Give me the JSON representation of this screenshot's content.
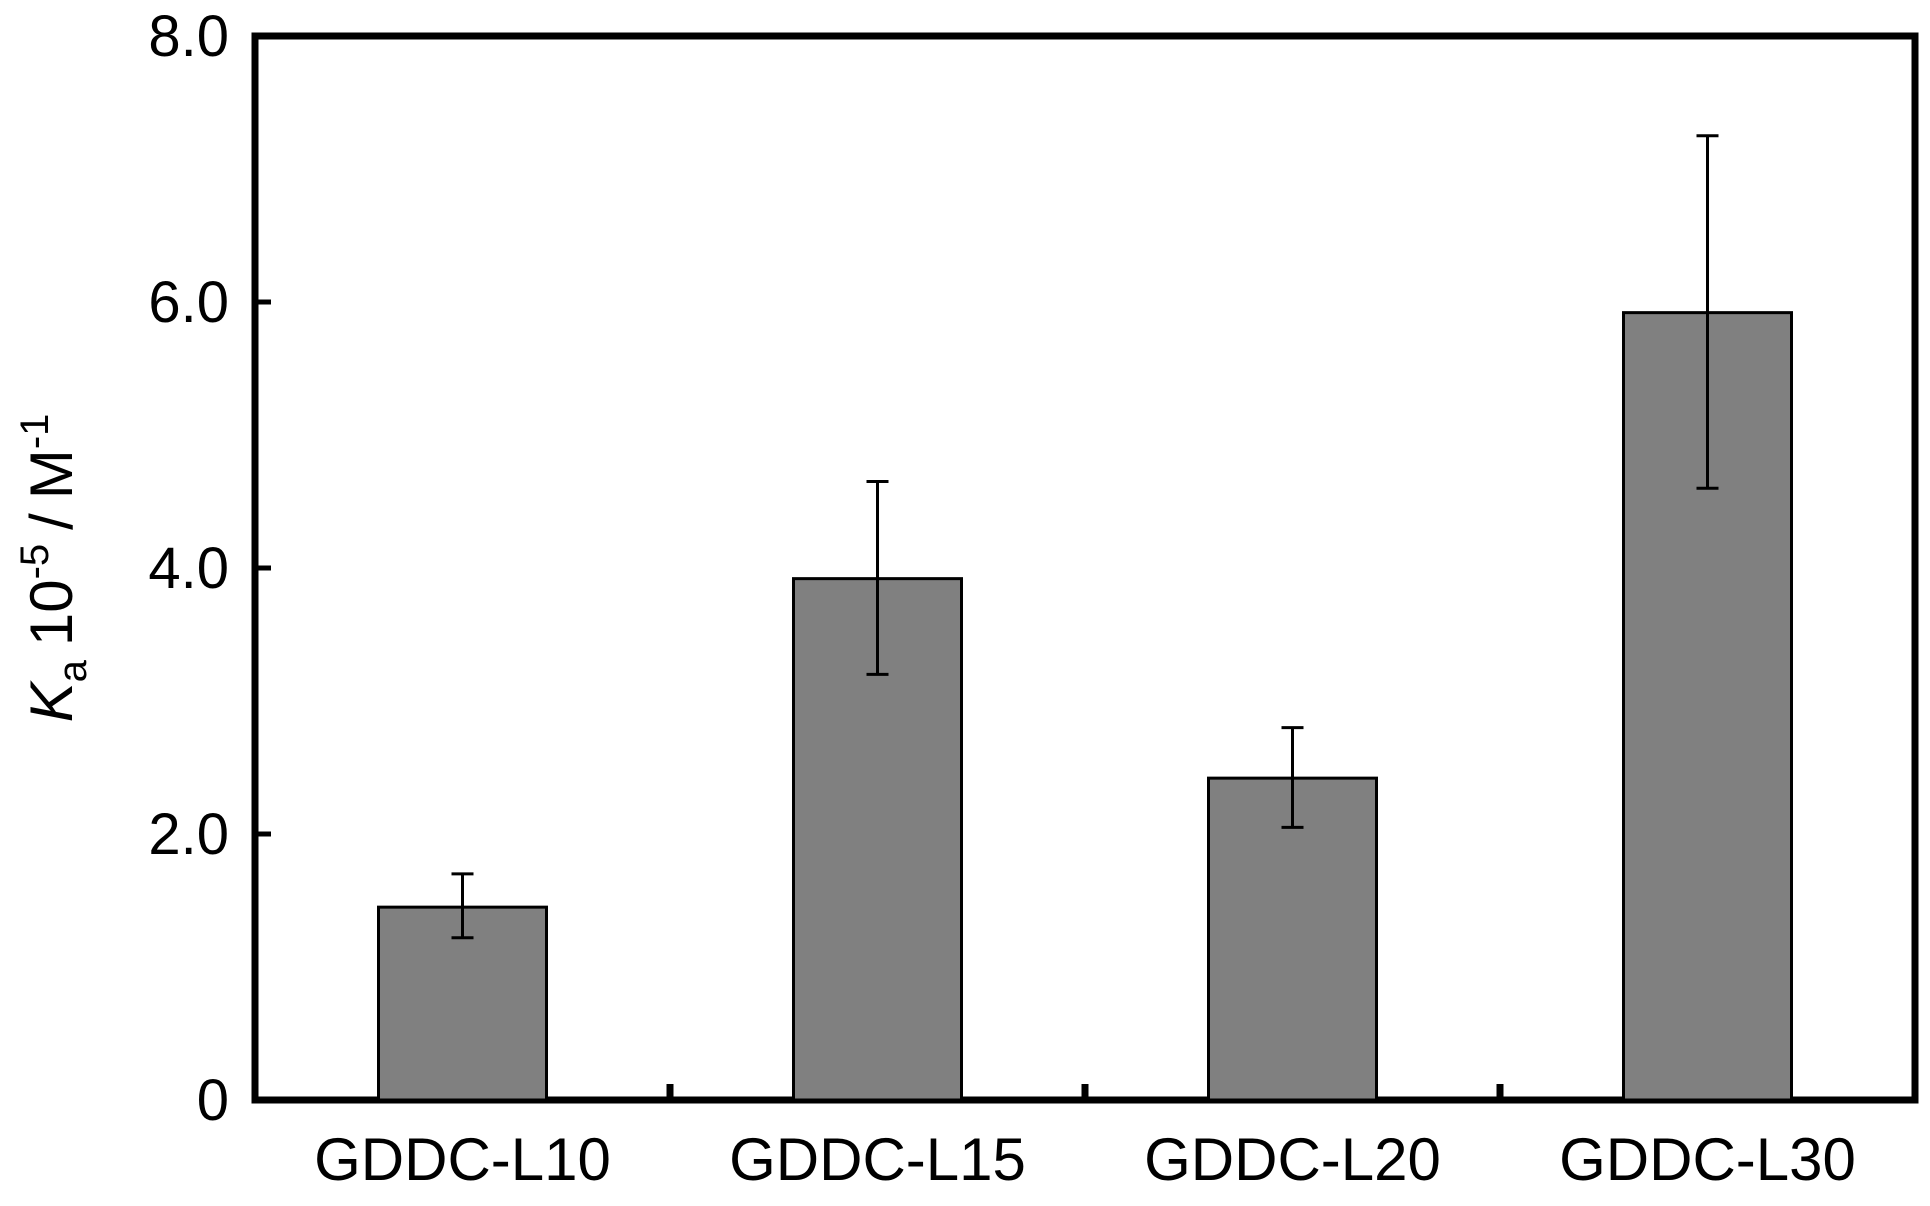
{
  "chart_data": {
    "type": "bar",
    "title": "",
    "xlabel": "",
    "ylabel": {
      "symbol": "K",
      "subscript": "a",
      "factor": "10",
      "factor_exponent": "-5",
      "unit_sep": "/",
      "unit": "M",
      "unit_exponent": "-1"
    },
    "categories": [
      "GDDC-L10",
      "GDDC-L15",
      "GDDC-L20",
      "GDDC-L30"
    ],
    "values": [
      1.45,
      3.92,
      2.42,
      5.92
    ],
    "error_upper": [
      1.7,
      4.65,
      2.8,
      7.25
    ],
    "error_lower": [
      1.22,
      3.2,
      2.05,
      4.6
    ],
    "ylim": [
      0,
      8.0
    ],
    "yticks": [
      0,
      2.0,
      4.0,
      6.0,
      8.0
    ],
    "ytick_labels": [
      "0",
      "2.0",
      "4.0",
      "6.0",
      "8.0"
    ],
    "grid": false,
    "legend": "none",
    "colors": {
      "bar_fill": "#808080",
      "bar_stroke": "#000000",
      "axis": "#000000"
    }
  }
}
